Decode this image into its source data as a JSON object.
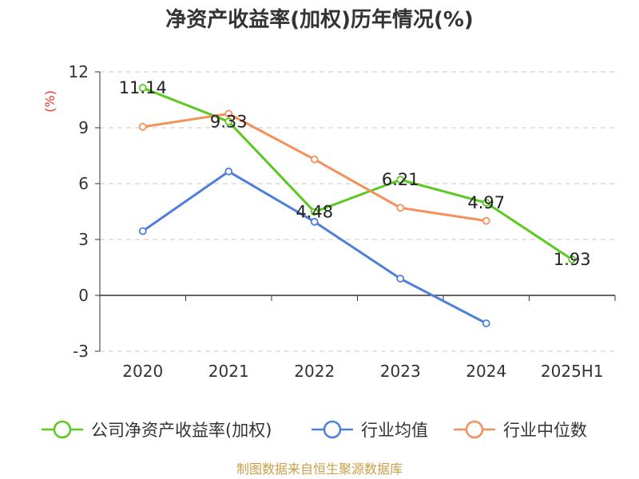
{
  "chart_data": {
    "type": "line",
    "title": "净资产收益率(加权)历年情况(%)",
    "ylabel": "(%)",
    "xlabel": "",
    "categories": [
      "2020",
      "2021",
      "2022",
      "2023",
      "2024",
      "2025H1"
    ],
    "ylim": [
      -3,
      12
    ],
    "yticks": [
      -3,
      0,
      3,
      6,
      9,
      12
    ],
    "grid": true,
    "legend_position": "bottom",
    "series": [
      {
        "name": "公司净资产收益率(加权)",
        "color": "#5cc922",
        "values": [
          11.14,
          9.33,
          4.48,
          6.21,
          4.97,
          1.93
        ],
        "labels": [
          "11.14",
          "9.33",
          "4.48",
          "6.21",
          "4.97",
          "1.93"
        ]
      },
      {
        "name": "行业均值",
        "color": "#4f7fdc",
        "values": [
          3.45,
          6.65,
          3.95,
          0.9,
          -1.5,
          null
        ]
      },
      {
        "name": "行业中位数",
        "color": "#f5905a",
        "values": [
          9.05,
          9.75,
          7.3,
          4.7,
          4.0,
          null
        ]
      }
    ]
  },
  "footer": {
    "source": "制图数据来自恒生聚源数据库"
  }
}
